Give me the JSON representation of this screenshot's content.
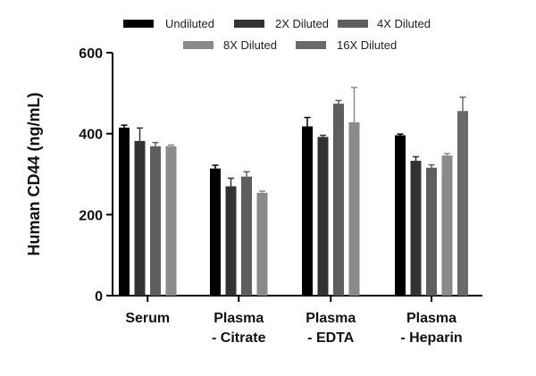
{
  "chart_data": {
    "type": "bar",
    "title": "",
    "xlabel": "",
    "ylabel": "Human CD44 (ng/mL)",
    "ylim": [
      0,
      600
    ],
    "yticks": [
      0,
      200,
      400,
      600
    ],
    "grid": false,
    "legend_position": "top",
    "categories": [
      [
        "Serum"
      ],
      [
        "Plasma",
        "- Citrate"
      ],
      [
        "Plasma",
        "- EDTA"
      ],
      [
        "Plasma",
        "- Heparin"
      ]
    ],
    "series": [
      {
        "name": "Undiluted",
        "color": "#000000",
        "values": [
          415,
          314,
          418,
          396
        ],
        "errors": [
          6,
          8,
          22,
          3
        ]
      },
      {
        "name": "2X Diluted",
        "color": "#333333",
        "values": [
          382,
          270,
          392,
          333
        ],
        "errors": [
          32,
          20,
          4,
          10
        ]
      },
      {
        "name": "4X Diluted",
        "color": "#5e5e5e",
        "values": [
          369,
          294,
          474,
          316
        ],
        "errors": [
          9,
          12,
          8,
          7
        ]
      },
      {
        "name": "8X Diluted",
        "color": "#8a8a8a",
        "values": [
          369,
          254,
          428,
          346
        ],
        "errors": [
          3,
          4,
          86,
          5
        ]
      },
      {
        "name": "16X Diluted",
        "color": "#6a6a6a",
        "values": [
          null,
          null,
          null,
          456
        ],
        "errors": [
          null,
          null,
          null,
          34
        ]
      }
    ]
  }
}
